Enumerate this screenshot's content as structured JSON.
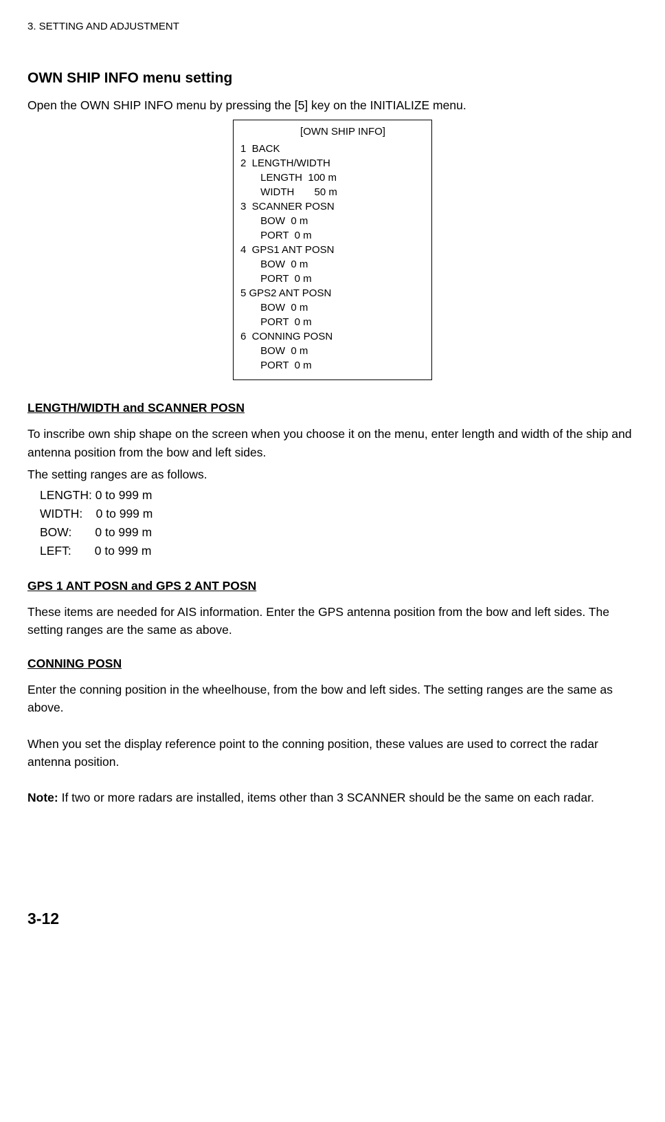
{
  "header": "3. SETTING AND ADJUSTMENT",
  "title": "OWN SHIP INFO menu setting",
  "intro": "Open the OWN SHIP INFO menu by pressing the [5] key on the INITIALIZE menu.",
  "menu": {
    "title": "[OWN SHIP INFO]",
    "lines": [
      "1  BACK",
      "2  LENGTH/WIDTH",
      "       LENGTH  100 m",
      "       WIDTH       50 m",
      "3  SCANNER POSN",
      "       BOW  0 m",
      "       PORT  0 m",
      "4  GPS1 ANT POSN",
      "       BOW  0 m",
      "       PORT  0 m",
      "5 GPS2 ANT POSN",
      "       BOW  0 m",
      "       PORT  0 m",
      "6  CONNING POSN",
      "       BOW  0 m",
      "       PORT  0 m"
    ]
  },
  "section1": {
    "heading": "LENGTH/WIDTH and SCANNER POSN",
    "p1": "To inscribe own ship shape on the screen when you choose it on the menu, enter length and width of the ship and antenna position from the bow and left sides.",
    "p2": "The setting ranges are as follows.",
    "ranges": [
      "LENGTH: 0 to 999 m",
      "WIDTH:    0 to 999 m",
      "BOW:       0 to 999 m",
      "LEFT:       0 to 999 m"
    ]
  },
  "section2": {
    "heading": "GPS 1 ANT POSN and GPS 2 ANT POSN",
    "p1": "These items are needed for AIS information. Enter the GPS antenna position from the bow and left sides. The setting ranges are the same as above."
  },
  "section3": {
    "heading": "CONNING POSN",
    "p1": "Enter the conning position in the wheelhouse, from the bow and left sides. The setting ranges are the same as above.",
    "p2": "When you set the display reference point to the conning position, these values are used to correct the radar antenna position.",
    "note_label": "Note:",
    "note_body": " If two or more radars are installed, items other than 3 SCANNER should be the same on each radar."
  },
  "page_number": "3-12"
}
